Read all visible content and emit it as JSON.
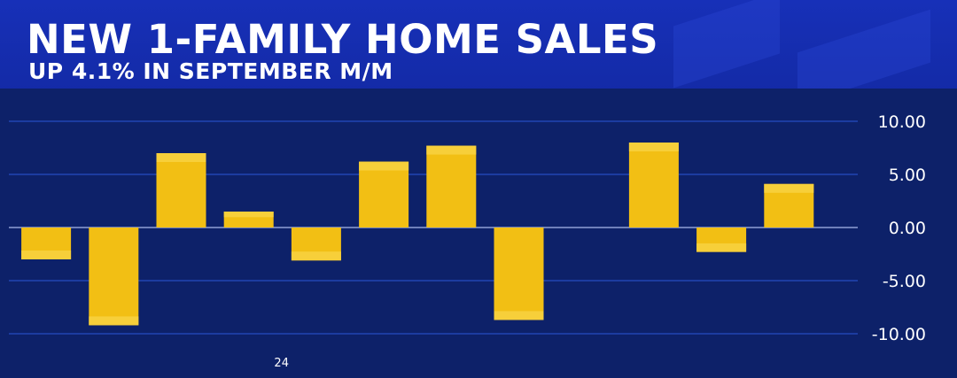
{
  "header": {
    "title": "NEW 1-FAMILY HOME SALES",
    "subtitle": "UP 4.1% IN SEPTEMBER M/M"
  },
  "colors": {
    "bar": "#f2bf14",
    "bar_cap": "#f7cf3a",
    "grid": "#2c56d8",
    "zero_line": "#8fa0d6",
    "plot_bg": "#0d2169",
    "text": "#ffffff"
  },
  "chart_data": {
    "type": "bar",
    "title": "NEW 1-FAMILY HOME SALES",
    "subtitle": "UP 4.1% IN SEPTEMBER M/M",
    "x_tick_labels": [
      "",
      "",
      "",
      "24",
      "",
      "",
      "",
      "",
      "",
      "",
      "",
      "",
      ""
    ],
    "values": [
      -3.0,
      -9.2,
      7.0,
      1.5,
      -3.1,
      6.2,
      7.7,
      -8.7,
      null,
      8.0,
      -2.3,
      4.1
    ],
    "y_ticks": [
      "10.00",
      "5.00",
      "0.00",
      "-5.00",
      "-10.00"
    ],
    "y_tick_values": [
      10,
      5,
      0,
      -5,
      -10
    ],
    "ylim": [
      -11.0,
      12.0
    ],
    "grid": true,
    "y_axis_side": "right",
    "xlabel": "",
    "ylabel": ""
  }
}
